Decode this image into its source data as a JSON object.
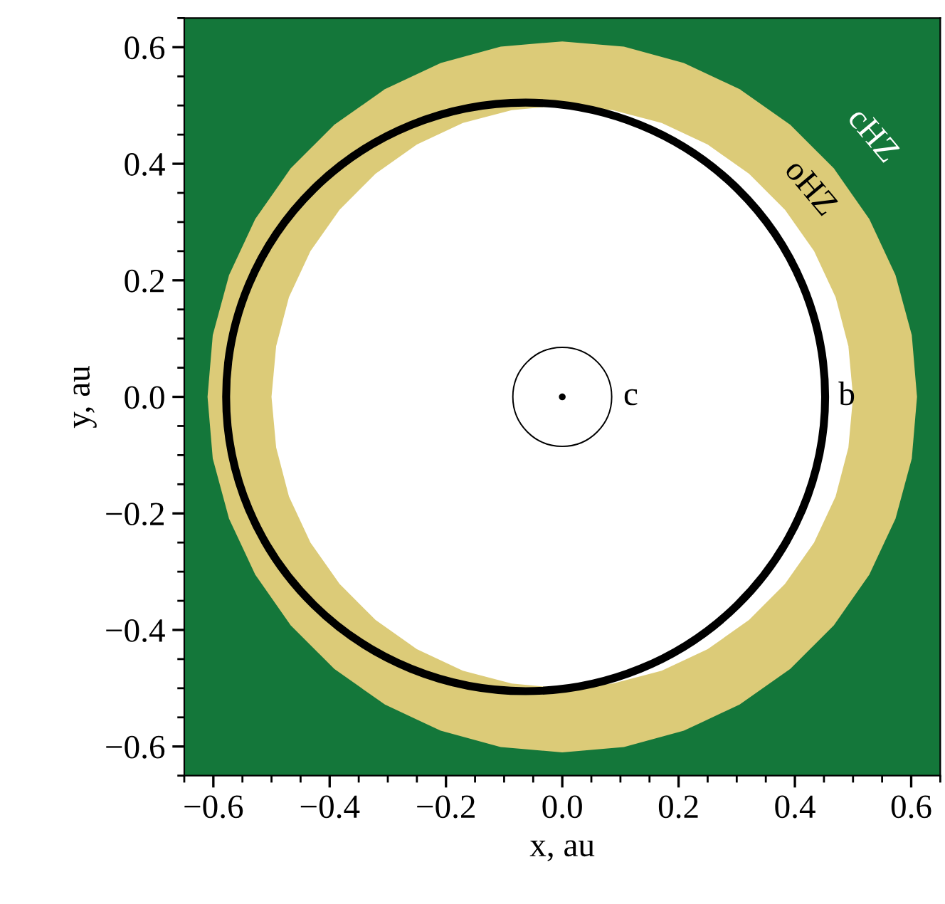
{
  "chart_data": {
    "type": "area",
    "xlabel": "x, au",
    "ylabel": "y, au",
    "xlim": [
      -0.65,
      0.65
    ],
    "ylim": [
      -0.65,
      0.65
    ],
    "xticks": [
      {
        "value": -0.6,
        "label": "−0.6"
      },
      {
        "value": -0.4,
        "label": "−0.4"
      },
      {
        "value": -0.2,
        "label": "−0.2"
      },
      {
        "value": 0,
        "label": "0.0"
      },
      0.2,
      0.4,
      0.6,
      {
        "value": -0.65,
        "label": null
      },
      {
        "value": -0.55,
        "label": null
      },
      {
        "value": -0.5,
        "label": null
      },
      {
        "value": -0.45,
        "label": null
      },
      {
        "value": -0.35,
        "label": null
      },
      {
        "value": -0.3,
        "label": null
      },
      {
        "value": -0.25,
        "label": null
      },
      {
        "value": -0.15,
        "label": null
      },
      {
        "value": -0.1,
        "label": null
      },
      {
        "value": -0.05,
        "label": null
      },
      {
        "value": 0.05,
        "label": null
      },
      {
        "value": 0.1,
        "label": null
      },
      {
        "value": 0.15,
        "label": null
      },
      {
        "value": 0.25,
        "label": null
      },
      {
        "value": 0.3,
        "label": null
      },
      {
        "value": 0.35,
        "label": null
      },
      {
        "value": 0.45,
        "label": null
      },
      {
        "value": 0.5,
        "label": null
      },
      {
        "value": 0.55,
        "label": null
      },
      {
        "value": 0.65,
        "label": null
      }
    ],
    "yticks": [
      {
        "value": -0.6,
        "label": "−0.6"
      },
      {
        "value": -0.4,
        "label": "−0.4"
      },
      {
        "value": -0.2,
        "label": "−0.2"
      },
      {
        "value": 0,
        "label": "0.0"
      },
      0.2,
      0.4,
      0.6,
      {
        "value": -0.65,
        "label": null
      },
      {
        "value": -0.55,
        "label": null
      },
      {
        "value": -0.5,
        "label": null
      },
      {
        "value": -0.45,
        "label": null
      },
      {
        "value": -0.35,
        "label": null
      },
      {
        "value": -0.3,
        "label": null
      },
      {
        "value": -0.25,
        "label": null
      },
      {
        "value": -0.15,
        "label": null
      },
      {
        "value": -0.1,
        "label": null
      },
      {
        "value": -0.05,
        "label": null
      },
      {
        "value": 0.05,
        "label": null
      },
      {
        "value": 0.1,
        "label": null
      },
      {
        "value": 0.15,
        "label": null
      },
      {
        "value": 0.25,
        "label": null
      },
      {
        "value": 0.3,
        "label": null
      },
      {
        "value": 0.35,
        "label": null
      },
      {
        "value": 0.45,
        "label": null
      },
      {
        "value": 0.5,
        "label": null
      },
      {
        "value": 0.55,
        "label": null
      },
      {
        "value": 0.65,
        "label": null
      }
    ],
    "series": [
      {
        "color": "#14773a",
        "x": [
          -0.65,
          0.65,
          0.65,
          -0.65,
          -0.65
        ],
        "values": [
          -0.65,
          -0.65,
          0.65,
          0.65,
          -0.65
        ]
      },
      {
        "color": "#dccb78",
        "x": [
          0.61,
          0.601,
          0.573,
          0.528,
          0.467,
          0.392,
          0.305,
          0.209,
          0.106,
          0,
          -0.106,
          -0.209,
          -0.305,
          -0.392,
          -0.467,
          -0.528,
          -0.573,
          -0.601,
          -0.61,
          -0.601,
          -0.573,
          -0.528,
          -0.467,
          -0.392,
          -0.305,
          -0.209,
          -0.106,
          0,
          0.106,
          0.209,
          0.305,
          0.392,
          0.467,
          0.528,
          0.573,
          0.601,
          0.61
        ],
        "values": [
          0,
          0.106,
          0.209,
          0.305,
          0.392,
          0.467,
          0.528,
          0.573,
          0.601,
          0.61,
          0.601,
          0.573,
          0.528,
          0.467,
          0.392,
          0.305,
          0.209,
          0.106,
          0,
          -0.106,
          -0.209,
          -0.305,
          -0.392,
          -0.467,
          -0.528,
          -0.573,
          -0.601,
          -0.61,
          -0.601,
          -0.573,
          -0.528,
          -0.467,
          -0.392,
          -0.305,
          -0.209,
          -0.106,
          0
        ]
      },
      {
        "color": "#ffffff",
        "x": [
          0.5,
          0.492,
          0.47,
          0.433,
          0.383,
          0.321,
          0.25,
          0.171,
          0.087,
          0,
          -0.087,
          -0.171,
          -0.25,
          -0.321,
          -0.383,
          -0.433,
          -0.47,
          -0.492,
          -0.5,
          -0.492,
          -0.47,
          -0.433,
          -0.383,
          -0.321,
          -0.25,
          -0.171,
          -0.087,
          0,
          0.087,
          0.171,
          0.25,
          0.321,
          0.383,
          0.433,
          0.47,
          0.492,
          0.5
        ],
        "values": [
          0,
          0.087,
          0.171,
          0.25,
          0.321,
          0.383,
          0.433,
          0.47,
          0.492,
          0.5,
          0.492,
          0.47,
          0.433,
          0.383,
          0.321,
          0.25,
          0.171,
          0.087,
          0,
          -0.087,
          -0.171,
          -0.25,
          -0.321,
          -0.383,
          -0.433,
          -0.47,
          -0.492,
          -0.5,
          -0.492,
          -0.47,
          -0.433,
          -0.383,
          -0.321,
          -0.25,
          -0.171,
          -0.087,
          0
        ]
      },
      {
        "type": "scatter",
        "color": "#000000",
        "x": [
          0
        ],
        "values": [
          0
        ]
      }
    ],
    "annotations": [
      "cHZ",
      "oHZ",
      "b",
      "c"
    ]
  }
}
